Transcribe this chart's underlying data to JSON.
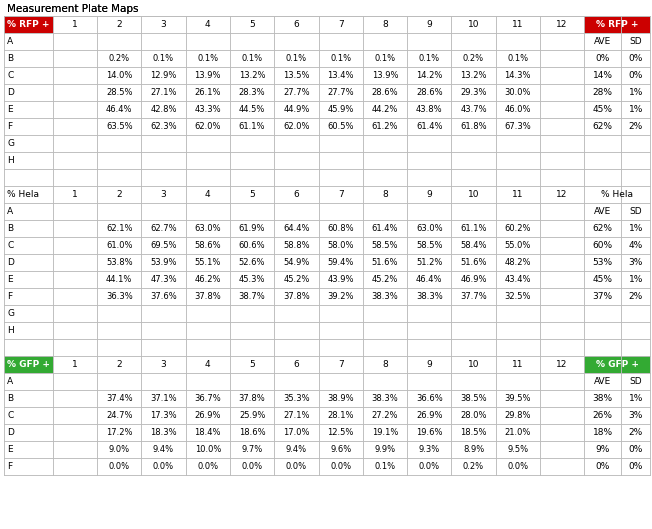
{
  "title": "Measurement Plate Maps",
  "rfp_header_color": "#CC0000",
  "gfp_header_color": "#33AA33",
  "grid_line_color": "#BBBBBB",
  "background_color": "#FFFFFF",
  "sections": [
    {
      "label": "% RFP +",
      "type": "rfp",
      "rows": [
        "A",
        "B",
        "C",
        "D",
        "E",
        "F",
        "G",
        "H"
      ],
      "data": {
        "A": [],
        "B": [
          "",
          "0.2%",
          "0.1%",
          "0.1%",
          "0.1%",
          "0.1%",
          "0.1%",
          "0.1%",
          "0.1%",
          "0.2%",
          "0.1%",
          ""
        ],
        "C": [
          "",
          "14.0%",
          "12.9%",
          "13.9%",
          "13.2%",
          "13.5%",
          "13.4%",
          "13.9%",
          "14.2%",
          "13.2%",
          "14.3%",
          ""
        ],
        "D": [
          "",
          "28.5%",
          "27.1%",
          "26.1%",
          "28.3%",
          "27.7%",
          "27.7%",
          "28.6%",
          "28.6%",
          "29.3%",
          "30.0%",
          ""
        ],
        "E": [
          "",
          "46.4%",
          "42.8%",
          "43.3%",
          "44.5%",
          "44.9%",
          "45.9%",
          "44.2%",
          "43.8%",
          "43.7%",
          "46.0%",
          ""
        ],
        "F": [
          "",
          "63.5%",
          "62.3%",
          "62.0%",
          "61.1%",
          "62.0%",
          "60.5%",
          "61.2%",
          "61.4%",
          "61.8%",
          "67.3%",
          ""
        ],
        "G": [],
        "H": []
      },
      "ave_sd": {
        "B": [
          "0%",
          "0%"
        ],
        "C": [
          "14%",
          "0%"
        ],
        "D": [
          "28%",
          "1%"
        ],
        "E": [
          "45%",
          "1%"
        ],
        "F": [
          "62%",
          "2%"
        ]
      }
    },
    {
      "label": "% Hela",
      "type": "hela",
      "rows": [
        "A",
        "B",
        "C",
        "D",
        "E",
        "F",
        "G",
        "H"
      ],
      "data": {
        "A": [],
        "B": [
          "",
          "62.1%",
          "62.7%",
          "63.0%",
          "61.9%",
          "64.4%",
          "60.8%",
          "61.4%",
          "63.0%",
          "61.1%",
          "60.2%",
          ""
        ],
        "C": [
          "",
          "61.0%",
          "69.5%",
          "58.6%",
          "60.6%",
          "58.8%",
          "58.0%",
          "58.5%",
          "58.5%",
          "58.4%",
          "55.0%",
          ""
        ],
        "D": [
          "",
          "53.8%",
          "53.9%",
          "55.1%",
          "52.6%",
          "54.9%",
          "59.4%",
          "51.6%",
          "51.2%",
          "51.6%",
          "48.2%",
          ""
        ],
        "E": [
          "",
          "44.1%",
          "47.3%",
          "46.2%",
          "45.3%",
          "45.2%",
          "43.9%",
          "45.2%",
          "46.4%",
          "46.9%",
          "43.4%",
          ""
        ],
        "F": [
          "",
          "36.3%",
          "37.6%",
          "37.8%",
          "38.7%",
          "37.8%",
          "39.2%",
          "38.3%",
          "38.3%",
          "37.7%",
          "32.5%",
          ""
        ],
        "G": [],
        "H": []
      },
      "ave_sd": {
        "B": [
          "62%",
          "1%"
        ],
        "C": [
          "60%",
          "4%"
        ],
        "D": [
          "53%",
          "3%"
        ],
        "E": [
          "45%",
          "1%"
        ],
        "F": [
          "37%",
          "2%"
        ]
      }
    },
    {
      "label": "% GFP +",
      "type": "gfp",
      "rows": [
        "A",
        "B",
        "C",
        "D",
        "E",
        "F"
      ],
      "data": {
        "A": [],
        "B": [
          "",
          "37.4%",
          "37.1%",
          "36.7%",
          "37.8%",
          "35.3%",
          "38.9%",
          "38.3%",
          "36.6%",
          "38.5%",
          "39.5%",
          ""
        ],
        "C": [
          "",
          "24.7%",
          "17.3%",
          "26.9%",
          "25.9%",
          "27.1%",
          "28.1%",
          "27.2%",
          "26.9%",
          "28.0%",
          "29.8%",
          ""
        ],
        "D": [
          "",
          "17.2%",
          "18.3%",
          "18.4%",
          "18.6%",
          "17.0%",
          "12.5%",
          "19.1%",
          "19.6%",
          "18.5%",
          "21.0%",
          ""
        ],
        "E": [
          "",
          "9.0%",
          "9.4%",
          "10.0%",
          "9.7%",
          "9.4%",
          "9.6%",
          "9.9%",
          "9.3%",
          "8.9%",
          "9.5%",
          ""
        ],
        "F": [
          "",
          "0.0%",
          "0.0%",
          "0.0%",
          "0.0%",
          "0.0%",
          "0.0%",
          "0.1%",
          "0.0%",
          "0.2%",
          "0.0%",
          ""
        ]
      },
      "ave_sd": {
        "B": [
          "38%",
          "1%"
        ],
        "C": [
          "26%",
          "3%"
        ],
        "D": [
          "18%",
          "2%"
        ],
        "E": [
          "9%",
          "0%"
        ],
        "F": [
          "0%",
          "0%"
        ]
      }
    }
  ],
  "col_nums": [
    "1",
    "2",
    "3",
    "4",
    "5",
    "6",
    "7",
    "8",
    "9",
    "10",
    "11",
    "12"
  ]
}
